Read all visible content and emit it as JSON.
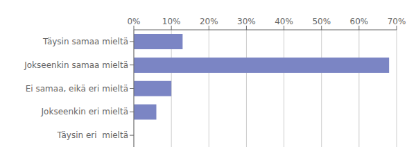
{
  "chart_data": {
    "type": "bar",
    "orientation": "horizontal",
    "categories": [
      "Täysin samaa mieltä",
      "Jokseenkin samaa mieltä",
      "Ei samaa, eikä eri mieltä",
      "Jokseenkin eri mieltä",
      "Täysin eri  mieltä"
    ],
    "values": [
      13,
      68,
      10,
      6,
      0
    ],
    "color": "#7b85c4",
    "xlim": [
      0,
      70
    ],
    "xticks": [
      {
        "value": 0,
        "label": "0%"
      },
      {
        "value": 10,
        "label": "10%"
      },
      {
        "value": 20,
        "label": "20%"
      },
      {
        "value": 30,
        "label": "30%"
      },
      {
        "value": 40,
        "label": "40%"
      },
      {
        "value": 50,
        "label": "50%"
      },
      {
        "value": 60,
        "label": "60%"
      },
      {
        "value": 70,
        "label": "70%"
      }
    ],
    "grid": true
  }
}
